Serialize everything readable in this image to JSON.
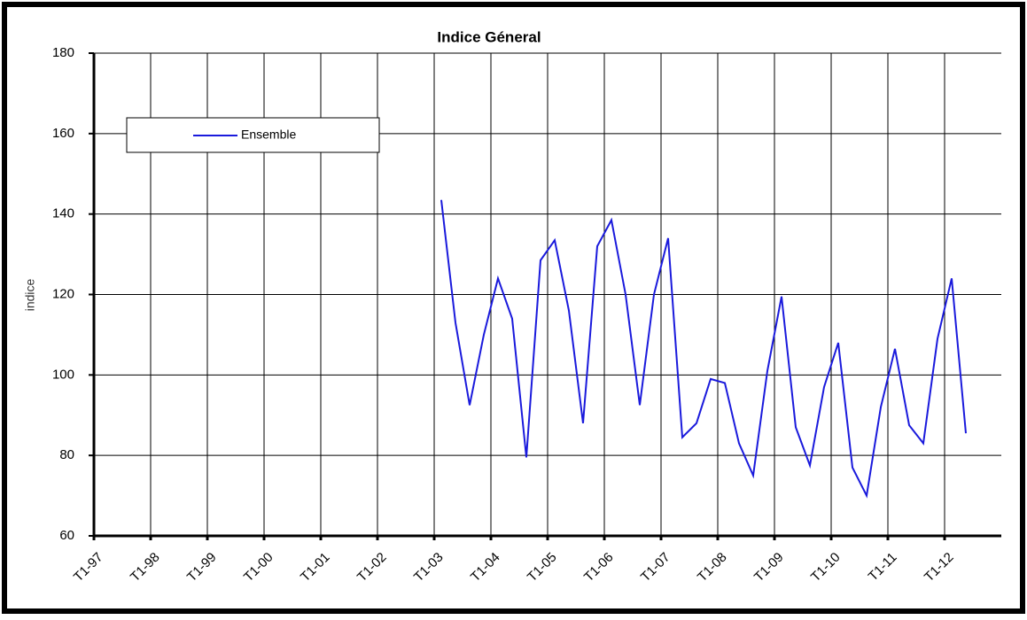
{
  "chart_data": {
    "type": "line",
    "title": "Indice Géneral",
    "y_label": "indice",
    "categories": [
      "T1-97",
      null,
      null,
      null,
      "T1-98",
      null,
      null,
      null,
      "T1-99",
      null,
      null,
      null,
      "T1-00",
      null,
      null,
      null,
      "T1-01",
      null,
      null,
      null,
      "T1-02",
      null,
      null,
      null,
      "T1-03",
      null,
      null,
      null,
      "T1-04",
      null,
      null,
      null,
      "T1-05",
      null,
      null,
      null,
      "T1-06",
      null,
      null,
      null,
      "T1-07",
      null,
      null,
      null,
      "T1-08",
      null,
      null,
      null,
      "T1-09",
      null,
      null,
      null,
      "T1-10",
      null,
      null,
      null,
      "T1-11",
      null,
      null,
      null,
      "T1-12",
      null,
      null,
      null
    ],
    "series": [
      {
        "name": "Ensemble",
        "color": "#1a1adc",
        "values": [
          null,
          null,
          null,
          null,
          null,
          null,
          null,
          null,
          null,
          null,
          null,
          null,
          null,
          null,
          null,
          null,
          null,
          null,
          null,
          null,
          null,
          null,
          null,
          null,
          143.5,
          113,
          92.5,
          110,
          124,
          114,
          79.5,
          128.5,
          133.5,
          116,
          88,
          132,
          138.5,
          120,
          92.5,
          120,
          134,
          84.5,
          88,
          99,
          98,
          83,
          75,
          101,
          119.5,
          87,
          77.5,
          97,
          108,
          77,
          70,
          92,
          106.5,
          87.5,
          83,
          109,
          124,
          85.5,
          null,
          null
        ]
      }
    ],
    "ylim": [
      60,
      180
    ],
    "yticks": [
      60,
      80,
      100,
      120,
      140,
      160,
      180
    ],
    "grid": true,
    "legend": "upper left"
  }
}
